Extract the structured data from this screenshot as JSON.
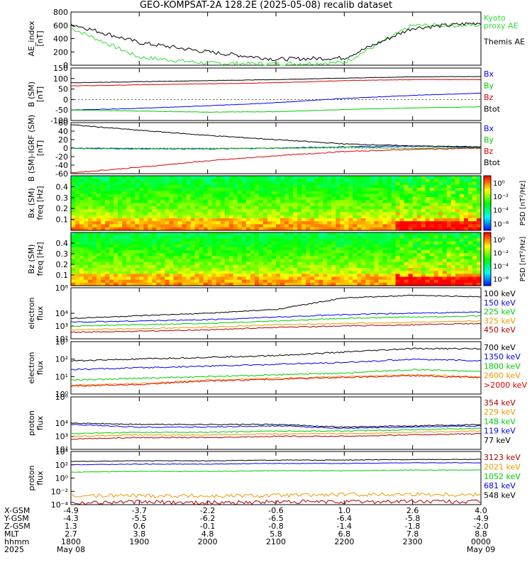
{
  "title": "GEO-KOMPSAT-2A 128.2E (2025-05-08) recalib dataset",
  "colors": {
    "black": "#000000",
    "blue": "#0000ee",
    "green": "#00cc00",
    "red": "#dd0000",
    "orange": "#ee9900",
    "darkred": "#aa0000",
    "kyoto": "#33dd33"
  },
  "chart_data": [
    {
      "id": "ae",
      "type": "line",
      "ylabel": "AE_index\n[nT]",
      "ylim": [
        0,
        800
      ],
      "yticks": [
        "0",
        "200",
        "400",
        "600",
        "800"
      ],
      "legend": [
        "Kyoto\nproxy AE",
        "Themis AE"
      ],
      "x_hours": [
        0,
        1,
        2,
        3,
        4,
        5,
        6
      ],
      "series": [
        {
          "name": "Kyoto proxy AE",
          "color": "kyoto",
          "values": [
            560,
            120,
            30,
            20,
            40,
            600,
            600
          ]
        },
        {
          "name": "Themis AE",
          "color": "black",
          "values": [
            620,
            340,
            200,
            90,
            110,
            560,
            640
          ]
        }
      ]
    },
    {
      "id": "bsm",
      "type": "line",
      "ylabel": "B (SM)\n[nT]",
      "ylim": [
        -100,
        150
      ],
      "yticks": [
        "-100",
        "-50",
        "0",
        "50",
        "100",
        "150"
      ],
      "legend": [
        "Bx",
        "By",
        "Bz",
        "Btot"
      ],
      "series": [
        {
          "name": "Bx",
          "color": "blue",
          "values": [
            -50,
            -42,
            -30,
            -15,
            5,
            20,
            30
          ]
        },
        {
          "name": "By",
          "color": "green",
          "values": [
            -50,
            -55,
            -60,
            -58,
            -48,
            -40,
            -35
          ]
        },
        {
          "name": "Bz",
          "color": "red",
          "values": [
            65,
            70,
            75,
            80,
            90,
            95,
            95
          ]
        },
        {
          "name": "Btot",
          "color": "black",
          "values": [
            80,
            85,
            90,
            95,
            102,
            108,
            110
          ]
        }
      ]
    },
    {
      "id": "bigrf",
      "type": "line",
      "ylabel": "B (SM)-IGRF (SM)\n[nT]",
      "ylim": [
        -60,
        60
      ],
      "yticks": [
        "-60",
        "-40",
        "-20",
        "0",
        "20",
        "40",
        "60"
      ],
      "legend": [
        "Bx",
        "By",
        "Bz",
        "Btot"
      ],
      "series": [
        {
          "name": "Bx",
          "color": "blue",
          "values": [
            0,
            -1,
            -2,
            0,
            3,
            5,
            2
          ]
        },
        {
          "name": "By",
          "color": "green",
          "values": [
            -1,
            -2,
            -1,
            0,
            2,
            0,
            1
          ]
        },
        {
          "name": "Bz",
          "color": "red",
          "values": [
            -58,
            -45,
            -30,
            -18,
            -8,
            -3,
            0
          ]
        },
        {
          "name": "Btot",
          "color": "black",
          "values": [
            55,
            42,
            30,
            20,
            10,
            5,
            3
          ]
        }
      ]
    },
    {
      "id": "bxspec",
      "type": "heatmap",
      "ylabel": "Bx (SM)\nfreq [Hz]",
      "yticks": [
        "0.1",
        "0.2",
        "0.3",
        "0.4"
      ],
      "colorbar_label": "PSD [nT²/Hz]",
      "colorbar_ticks": [
        "10⁰",
        "10⁻²",
        "10⁻⁴",
        "10⁻⁶"
      ]
    },
    {
      "id": "bzspec",
      "type": "heatmap",
      "ylabel": "Bz (SM)\nfreq [Hz]",
      "yticks": [
        "0.1",
        "0.2",
        "0.3",
        "0.4"
      ],
      "colorbar_label": "PSD [nT²/Hz]",
      "colorbar_ticks": [
        "10⁰",
        "10⁻²",
        "10⁻⁴",
        "10⁻⁶"
      ]
    },
    {
      "id": "elec1",
      "type": "line",
      "scale": "log",
      "ylabel": "electron\nflux",
      "ylim_exp": [
        2,
        6
      ],
      "yticks": [
        "10²",
        "10³",
        "10⁴",
        "10⁶"
      ],
      "legend": [
        "100 keV",
        "150 keV",
        "225 keV",
        "325 keV",
        "450 keV"
      ],
      "series": [
        {
          "name": "100 keV",
          "color": "black",
          "values": [
            3.6,
            3.8,
            4.0,
            4.3,
            5.2,
            5.4,
            5.3
          ]
        },
        {
          "name": "150 keV",
          "color": "blue",
          "values": [
            3.3,
            3.4,
            3.5,
            3.7,
            3.9,
            4.0,
            4.1
          ]
        },
        {
          "name": "225 keV",
          "color": "green",
          "values": [
            3.0,
            3.1,
            3.2,
            3.4,
            3.6,
            3.7,
            3.8
          ]
        },
        {
          "name": "325 keV",
          "color": "orange",
          "values": [
            2.7,
            2.8,
            2.9,
            3.1,
            3.2,
            3.3,
            3.4
          ]
        },
        {
          "name": "450 keV",
          "color": "darkred",
          "values": [
            2.5,
            2.6,
            2.7,
            2.9,
            3.0,
            3.1,
            3.2
          ]
        }
      ]
    },
    {
      "id": "elec2",
      "type": "line",
      "scale": "log",
      "ylabel": "electron\nflux",
      "ylim_exp": [
        0,
        3
      ],
      "yticks": [
        "10⁰",
        "10¹",
        "10²",
        "10³"
      ],
      "legend": [
        "700 keV",
        "1350 keV",
        "1800 keV",
        "2600 keV",
        ">2000 keV"
      ],
      "series": [
        {
          "name": "700 keV",
          "color": "black",
          "values": [
            1.9,
            2.0,
            2.1,
            2.2,
            2.4,
            2.6,
            2.6
          ]
        },
        {
          "name": "1350 keV",
          "color": "blue",
          "values": [
            1.4,
            1.5,
            1.6,
            1.7,
            1.8,
            2.0,
            1.9
          ]
        },
        {
          "name": "1800 keV",
          "color": "green",
          "values": [
            0.8,
            0.9,
            1.0,
            1.1,
            1.2,
            1.4,
            1.3
          ]
        },
        {
          "name": "2600 keV",
          "color": "orange",
          "values": [
            0.5,
            0.6,
            0.8,
            0.9,
            1.0,
            1.1,
            1.0
          ]
        },
        {
          "name": ">2000 keV",
          "color": "red",
          "values": [
            0.45,
            0.55,
            0.75,
            0.85,
            0.95,
            1.05,
            0.95
          ]
        }
      ]
    },
    {
      "id": "prot1",
      "type": "line",
      "scale": "log",
      "ylabel": "proton\nflux",
      "ylim_exp": [
        2,
        6
      ],
      "yticks": [
        "10²",
        "10³",
        "10⁴",
        "10⁶"
      ],
      "legend": [
        "354 keV",
        "229 keV",
        "148 keV",
        "119 keV",
        "77 keV"
      ],
      "series": [
        {
          "name": "354 keV",
          "color": "darkred",
          "values": [
            2.8,
            2.9,
            2.9,
            3.0,
            3.0,
            3.1,
            3.2
          ]
        },
        {
          "name": "229 keV",
          "color": "orange",
          "values": [
            3.0,
            3.1,
            3.1,
            3.2,
            3.2,
            3.3,
            3.4
          ]
        },
        {
          "name": "148 keV",
          "color": "green",
          "values": [
            3.2,
            3.3,
            3.3,
            3.4,
            3.4,
            3.5,
            3.6
          ]
        },
        {
          "name": "119 keV",
          "color": "blue",
          "values": [
            3.9,
            3.7,
            3.7,
            3.8,
            3.6,
            3.7,
            3.8
          ]
        },
        {
          "name": "77 keV",
          "color": "black",
          "values": [
            4.0,
            3.9,
            3.9,
            3.9,
            3.7,
            3.8,
            3.9
          ]
        }
      ]
    },
    {
      "id": "prot2",
      "type": "line",
      "scale": "log",
      "ylabel": "proton\nflux",
      "ylim_exp": [
        -4,
        4
      ],
      "yticks": [
        "10⁻⁴",
        "10⁻²",
        "10⁰",
        "10²",
        "10⁴"
      ],
      "legend": [
        "3123 keV",
        "2021 keV",
        "1052 keV",
        "681 keV",
        "548 keV"
      ],
      "series": [
        {
          "name": "3123 keV",
          "color": "darkred",
          "values": [
            -3.7,
            -3.6,
            -3.7,
            -3.6,
            -3.6,
            -3.5,
            -3.6
          ]
        },
        {
          "name": "2021 keV",
          "color": "orange",
          "values": [
            -2.7,
            -2.6,
            -2.7,
            -2.6,
            -2.5,
            -2.4,
            -2.5
          ]
        },
        {
          "name": "1052 keV",
          "color": "green",
          "values": [
            0.9,
            1.0,
            1.0,
            1.1,
            1.1,
            1.2,
            1.2
          ]
        },
        {
          "name": "681 keV",
          "color": "blue",
          "values": [
            2.0,
            2.1,
            2.1,
            2.2,
            2.2,
            2.3,
            2.3
          ]
        },
        {
          "name": "548 keV",
          "color": "black",
          "values": [
            2.5,
            2.6,
            2.6,
            2.7,
            2.7,
            2.8,
            2.8
          ]
        }
      ]
    }
  ],
  "axis_labels": [
    "X-GSM",
    "Y-GSM",
    "Z-GSM",
    "MLT",
    "hhmm",
    "2025"
  ],
  "axis_columns": [
    [
      "-4.9",
      "-4.3",
      "1.3",
      "2.7",
      "1800",
      "May 08"
    ],
    [
      "-3.7",
      "-5.5",
      "0.6",
      "3.8",
      "1900",
      ""
    ],
    [
      "-2.2",
      "-6.2",
      "-0.1",
      "4.8",
      "2000",
      ""
    ],
    [
      "-0.6",
      "-6.5",
      "-0.8",
      "5.8",
      "2100",
      ""
    ],
    [
      "1.0",
      "-6.4",
      "-1.4",
      "6.8",
      "2200",
      ""
    ],
    [
      "2.6",
      "-5.8",
      "-1.8",
      "7.8",
      "2300",
      ""
    ],
    [
      "4.0",
      "-4.9",
      "-2.0",
      "8.8",
      "0000",
      "May 09"
    ]
  ]
}
